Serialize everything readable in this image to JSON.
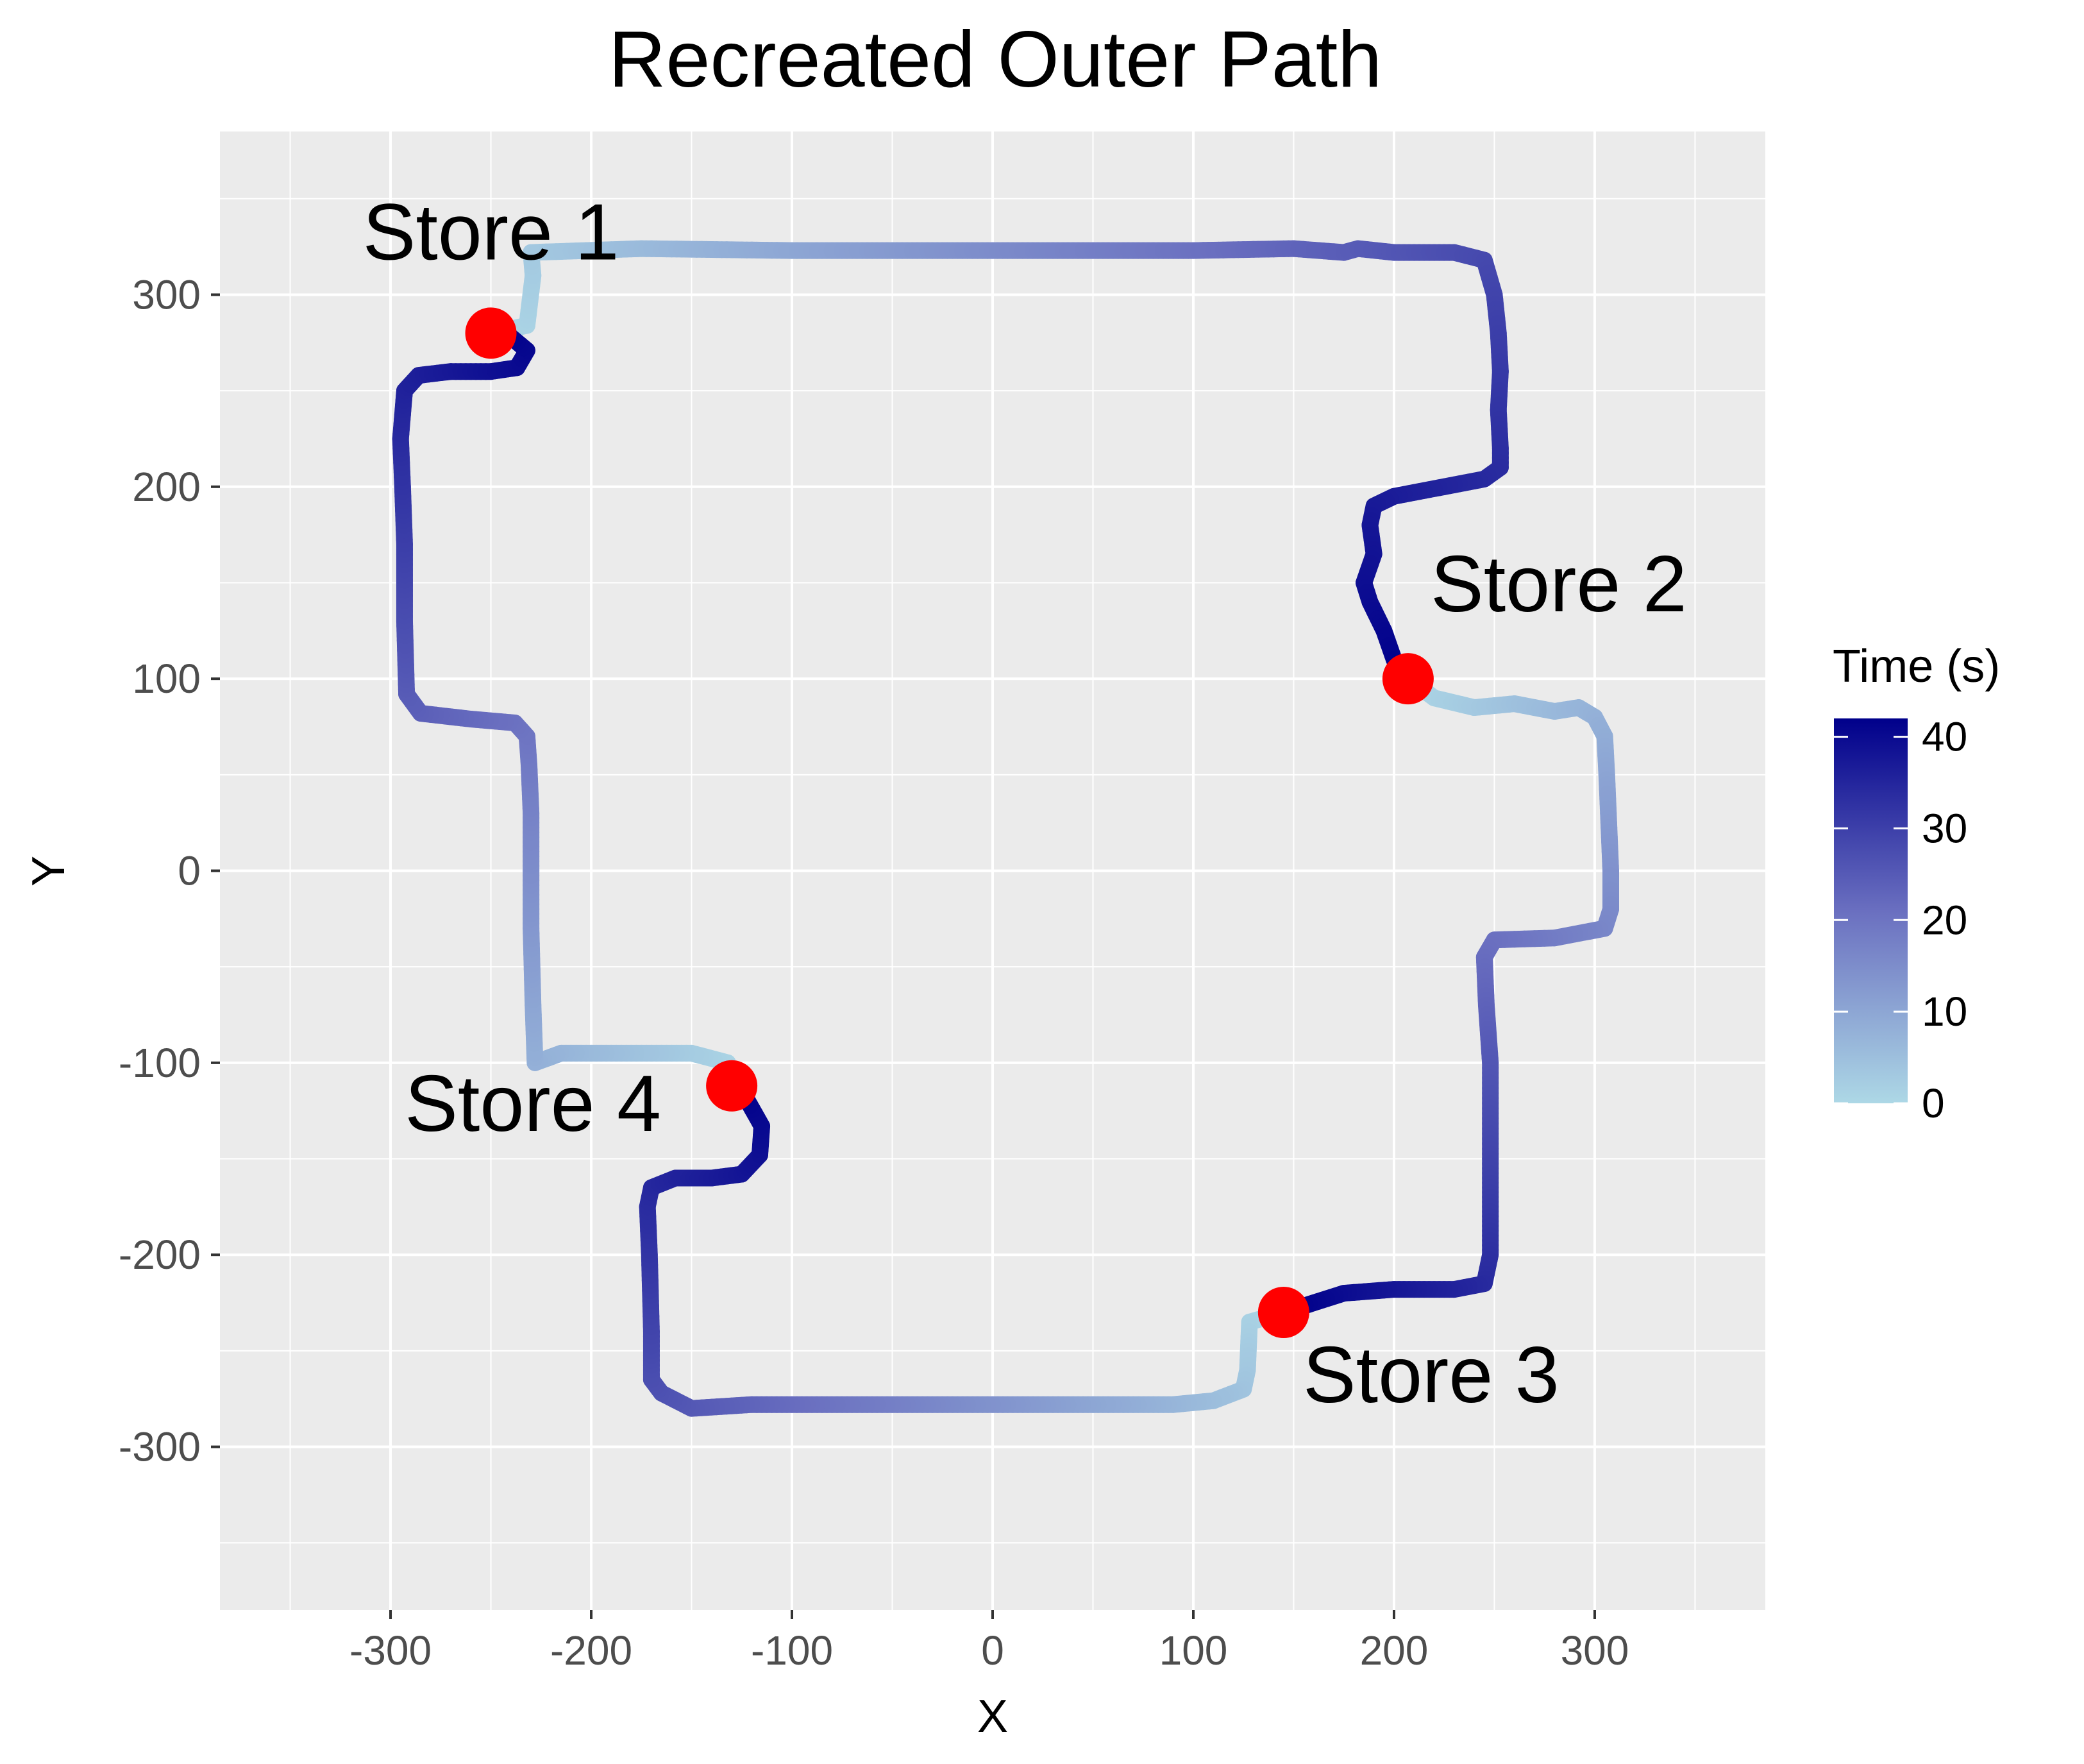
{
  "chart_data": {
    "type": "path",
    "title": "Recreated Outer Path",
    "xlabel": "X",
    "ylabel": "Y",
    "xlim": [
      -385,
      385
    ],
    "ylim": [
      -385,
      385
    ],
    "x_ticks": [
      "-300",
      "-200",
      "-100",
      "0",
      "100",
      "200",
      "300"
    ],
    "y_ticks": [
      "300",
      "200",
      "100",
      "0",
      "-100",
      "-200",
      "-300"
    ],
    "x_tick_values": [
      -300,
      -200,
      -100,
      0,
      100,
      200,
      300
    ],
    "y_tick_values": [
      300,
      200,
      100,
      0,
      -100,
      -200,
      -300
    ],
    "grid": true,
    "panel_background": "#EBEBEB",
    "color_low": "#ADD8E6",
    "color_high": "#00008B",
    "legend": {
      "title": "Time (s)",
      "placement": "right",
      "range": [
        0,
        42
      ],
      "ticks": [
        "40",
        "30",
        "20",
        "10",
        "0"
      ],
      "tick_values": [
        40,
        30,
        20,
        10,
        0
      ]
    },
    "segments": [
      {
        "name": "Store 1 to Store 2",
        "points": [
          [
            -250,
            280
          ],
          [
            -232,
            284
          ],
          [
            -229,
            310
          ],
          [
            -230,
            322
          ],
          [
            -175,
            324
          ],
          [
            -100,
            323
          ],
          [
            0,
            323
          ],
          [
            100,
            323
          ],
          [
            150,
            324
          ],
          [
            175,
            322
          ],
          [
            182,
            324
          ],
          [
            200,
            322
          ],
          [
            230,
            322
          ],
          [
            245,
            318
          ],
          [
            250,
            300
          ],
          [
            252,
            280
          ],
          [
            253,
            260
          ],
          [
            252,
            240
          ],
          [
            253,
            220
          ],
          [
            253,
            210
          ],
          [
            245,
            204
          ],
          [
            225,
            200
          ],
          [
            200,
            195
          ],
          [
            190,
            190
          ],
          [
            188,
            180
          ],
          [
            190,
            165
          ],
          [
            185,
            150
          ],
          [
            188,
            140
          ],
          [
            195,
            125
          ],
          [
            200,
            110
          ],
          [
            207,
            100
          ]
        ]
      },
      {
        "name": "Store 2 to Store 3",
        "points": [
          [
            207,
            100
          ],
          [
            220,
            90
          ],
          [
            240,
            85
          ],
          [
            260,
            87
          ],
          [
            280,
            83
          ],
          [
            292,
            85
          ],
          [
            300,
            80
          ],
          [
            305,
            70
          ],
          [
            306,
            50
          ],
          [
            307,
            25
          ],
          [
            308,
            0
          ],
          [
            308,
            -20
          ],
          [
            305,
            -30
          ],
          [
            280,
            -35
          ],
          [
            250,
            -36
          ],
          [
            245,
            -45
          ],
          [
            246,
            -70
          ],
          [
            248,
            -100
          ],
          [
            248,
            -150
          ],
          [
            248,
            -180
          ],
          [
            248,
            -200
          ],
          [
            245,
            -215
          ],
          [
            230,
            -218
          ],
          [
            200,
            -218
          ],
          [
            175,
            -220
          ],
          [
            160,
            -225
          ],
          [
            145,
            -230
          ]
        ]
      },
      {
        "name": "Store 3 to Store 4",
        "points": [
          [
            145,
            -230
          ],
          [
            128,
            -235
          ],
          [
            127,
            -260
          ],
          [
            125,
            -270
          ],
          [
            110,
            -276
          ],
          [
            90,
            -278
          ],
          [
            60,
            -278
          ],
          [
            0,
            -278
          ],
          [
            -60,
            -278
          ],
          [
            -120,
            -278
          ],
          [
            -150,
            -280
          ],
          [
            -165,
            -272
          ],
          [
            -170,
            -265
          ],
          [
            -170,
            -240
          ],
          [
            -171,
            -200
          ],
          [
            -172,
            -175
          ],
          [
            -170,
            -165
          ],
          [
            -158,
            -160
          ],
          [
            -140,
            -160
          ],
          [
            -125,
            -158
          ],
          [
            -116,
            -148
          ],
          [
            -115,
            -133
          ],
          [
            -122,
            -120
          ],
          [
            -130,
            -112
          ]
        ]
      },
      {
        "name": "Store 4 to Store 1",
        "points": [
          [
            -130,
            -112
          ],
          [
            -132,
            -100
          ],
          [
            -150,
            -95
          ],
          [
            -180,
            -95
          ],
          [
            -215,
            -95
          ],
          [
            -228,
            -100
          ],
          [
            -229,
            -70
          ],
          [
            -230,
            -30
          ],
          [
            -230,
            0
          ],
          [
            -230,
            30
          ],
          [
            -231,
            55
          ],
          [
            -232,
            70
          ],
          [
            -238,
            77
          ],
          [
            -260,
            79
          ],
          [
            -285,
            82
          ],
          [
            -292,
            92
          ],
          [
            -293,
            130
          ],
          [
            -293,
            170
          ],
          [
            -294,
            200
          ],
          [
            -295,
            225
          ],
          [
            -293,
            250
          ],
          [
            -286,
            258
          ],
          [
            -270,
            260
          ],
          [
            -250,
            260
          ],
          [
            -237,
            262
          ],
          [
            -232,
            271
          ],
          [
            -240,
            278
          ],
          [
            -250,
            280
          ]
        ]
      }
    ],
    "markers": [
      {
        "label": "Store 1",
        "x": -250,
        "y": 280,
        "color": "#FF0000"
      },
      {
        "label": "Store 2",
        "x": 207,
        "y": 100,
        "color": "#FF0000"
      },
      {
        "label": "Store 3",
        "x": 145,
        "y": -230,
        "color": "#FF0000"
      },
      {
        "label": "Store 4",
        "x": -130,
        "y": -112,
        "color": "#FF0000"
      }
    ]
  }
}
